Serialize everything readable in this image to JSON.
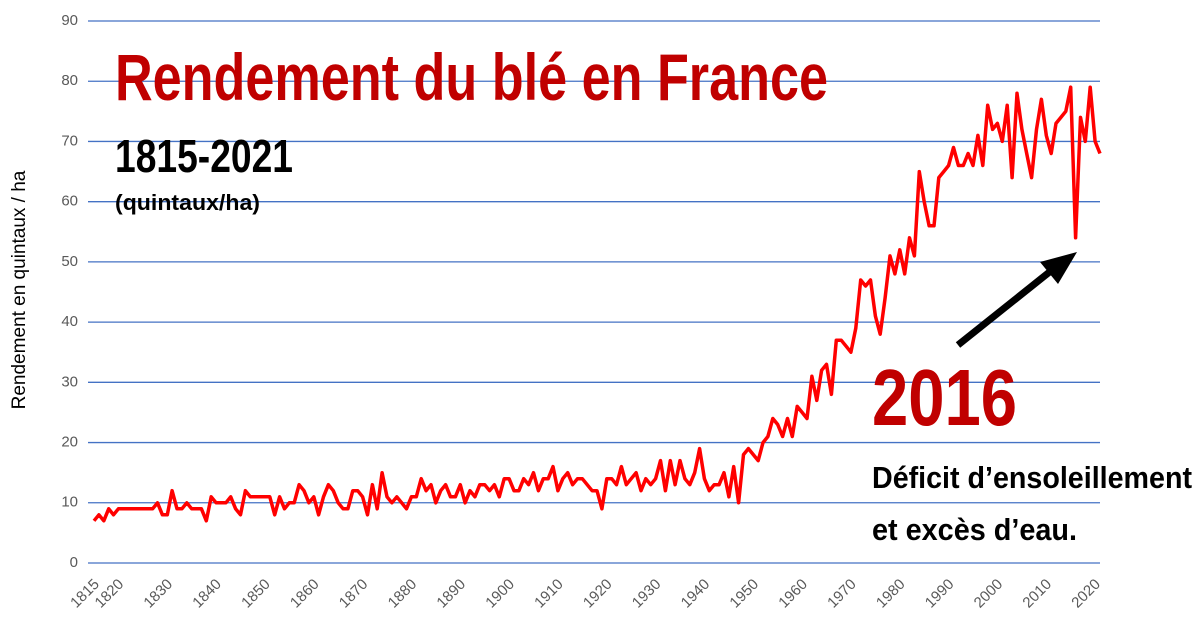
{
  "chart_data": {
    "type": "line",
    "title": "Rendement du blé en France",
    "subtitle": "1815-2021",
    "unit_note": "(quintaux/ha)",
    "y_label": "Rendement en quintaux / ha",
    "annotations": [
      "2016",
      "Déficit d’ensoleillement",
      "et excès d’eau."
    ],
    "x": [
      1815,
      1816,
      1817,
      1818,
      1819,
      1820,
      1821,
      1822,
      1823,
      1824,
      1825,
      1826,
      1827,
      1828,
      1829,
      1830,
      1831,
      1832,
      1833,
      1834,
      1835,
      1836,
      1837,
      1838,
      1839,
      1840,
      1841,
      1842,
      1843,
      1844,
      1845,
      1846,
      1847,
      1848,
      1849,
      1850,
      1851,
      1852,
      1853,
      1854,
      1855,
      1856,
      1857,
      1858,
      1859,
      1860,
      1861,
      1862,
      1863,
      1864,
      1865,
      1866,
      1867,
      1868,
      1869,
      1870,
      1871,
      1872,
      1873,
      1874,
      1875,
      1876,
      1877,
      1878,
      1879,
      1880,
      1881,
      1882,
      1883,
      1884,
      1885,
      1886,
      1887,
      1888,
      1889,
      1890,
      1891,
      1892,
      1893,
      1894,
      1895,
      1896,
      1897,
      1898,
      1899,
      1900,
      1901,
      1902,
      1903,
      1904,
      1905,
      1906,
      1907,
      1908,
      1909,
      1910,
      1911,
      1912,
      1913,
      1914,
      1915,
      1916,
      1917,
      1918,
      1919,
      1920,
      1921,
      1922,
      1923,
      1924,
      1925,
      1926,
      1927,
      1928,
      1929,
      1930,
      1931,
      1932,
      1933,
      1934,
      1935,
      1936,
      1937,
      1938,
      1939,
      1940,
      1941,
      1942,
      1943,
      1944,
      1945,
      1946,
      1947,
      1948,
      1949,
      1950,
      1951,
      1952,
      1953,
      1954,
      1955,
      1956,
      1957,
      1958,
      1959,
      1960,
      1961,
      1962,
      1963,
      1964,
      1965,
      1966,
      1967,
      1968,
      1969,
      1970,
      1971,
      1972,
      1973,
      1974,
      1975,
      1976,
      1977,
      1978,
      1979,
      1980,
      1981,
      1982,
      1983,
      1984,
      1985,
      1986,
      1987,
      1988,
      1989,
      1990,
      1991,
      1992,
      1993,
      1994,
      1995,
      1996,
      1997,
      1998,
      1999,
      2000,
      2001,
      2002,
      2003,
      2004,
      2005,
      2006,
      2007,
      2008,
      2009,
      2010,
      2011,
      2012,
      2013,
      2014,
      2015,
      2016,
      2017,
      2018,
      2019,
      2020,
      2021
    ],
    "series": [
      {
        "color": "#ff0000",
        "values": [
          7,
          8,
          7,
          9,
          8,
          9,
          9,
          9,
          9,
          9,
          9,
          9,
          9,
          10,
          8,
          8,
          12,
          9,
          9,
          10,
          9,
          9,
          9,
          7,
          11,
          10,
          10,
          10,
          11,
          9,
          8,
          12,
          11,
          11,
          11,
          11,
          11,
          8,
          11,
          9,
          10,
          10,
          13,
          12,
          10,
          11,
          8,
          11,
          13,
          12,
          10,
          9,
          9,
          12,
          12,
          11,
          8,
          13,
          9,
          15,
          11,
          10,
          11,
          10,
          9,
          11,
          11,
          14,
          12,
          13,
          10,
          12,
          13,
          11,
          11,
          13,
          10,
          12,
          11,
          13,
          13,
          12,
          13,
          11,
          14,
          14,
          12,
          12,
          14,
          13,
          15,
          12,
          14,
          14,
          16,
          12,
          14,
          15,
          13,
          14,
          14,
          13,
          12,
          12,
          9,
          14,
          14,
          13,
          16,
          13,
          14,
          15,
          12,
          14,
          13,
          14,
          17,
          12,
          17,
          13,
          17,
          14,
          13,
          15,
          19,
          14,
          12,
          13,
          13,
          15,
          11,
          16,
          10,
          18,
          19,
          18,
          17,
          20,
          21,
          24,
          23,
          21,
          24,
          21,
          26,
          25,
          24,
          31,
          27,
          32,
          33,
          28,
          37,
          37,
          36,
          35,
          39,
          47,
          46,
          47,
          41,
          38,
          44,
          51,
          48,
          52,
          48,
          54,
          51,
          65,
          60,
          56,
          56,
          64,
          65,
          66,
          69,
          66,
          66,
          68,
          66,
          71,
          66,
          76,
          72,
          73,
          70,
          76,
          64,
          78,
          72,
          68,
          64,
          72,
          77,
          71,
          68,
          73,
          74,
          75,
          79,
          54,
          74,
          70,
          79,
          70,
          68
        ]
      }
    ],
    "xlim": [
      1815,
      2021
    ],
    "xticks": [
      1815,
      1820,
      1830,
      1840,
      1850,
      1860,
      1870,
      1880,
      1890,
      1900,
      1910,
      1920,
      1930,
      1940,
      1950,
      1960,
      1970,
      1980,
      1990,
      2000,
      2010,
      2020
    ],
    "ylim": [
      0,
      90
    ],
    "yticks": [
      0,
      10,
      20,
      30,
      40,
      50,
      60,
      70,
      80,
      90
    ],
    "grid": true
  }
}
